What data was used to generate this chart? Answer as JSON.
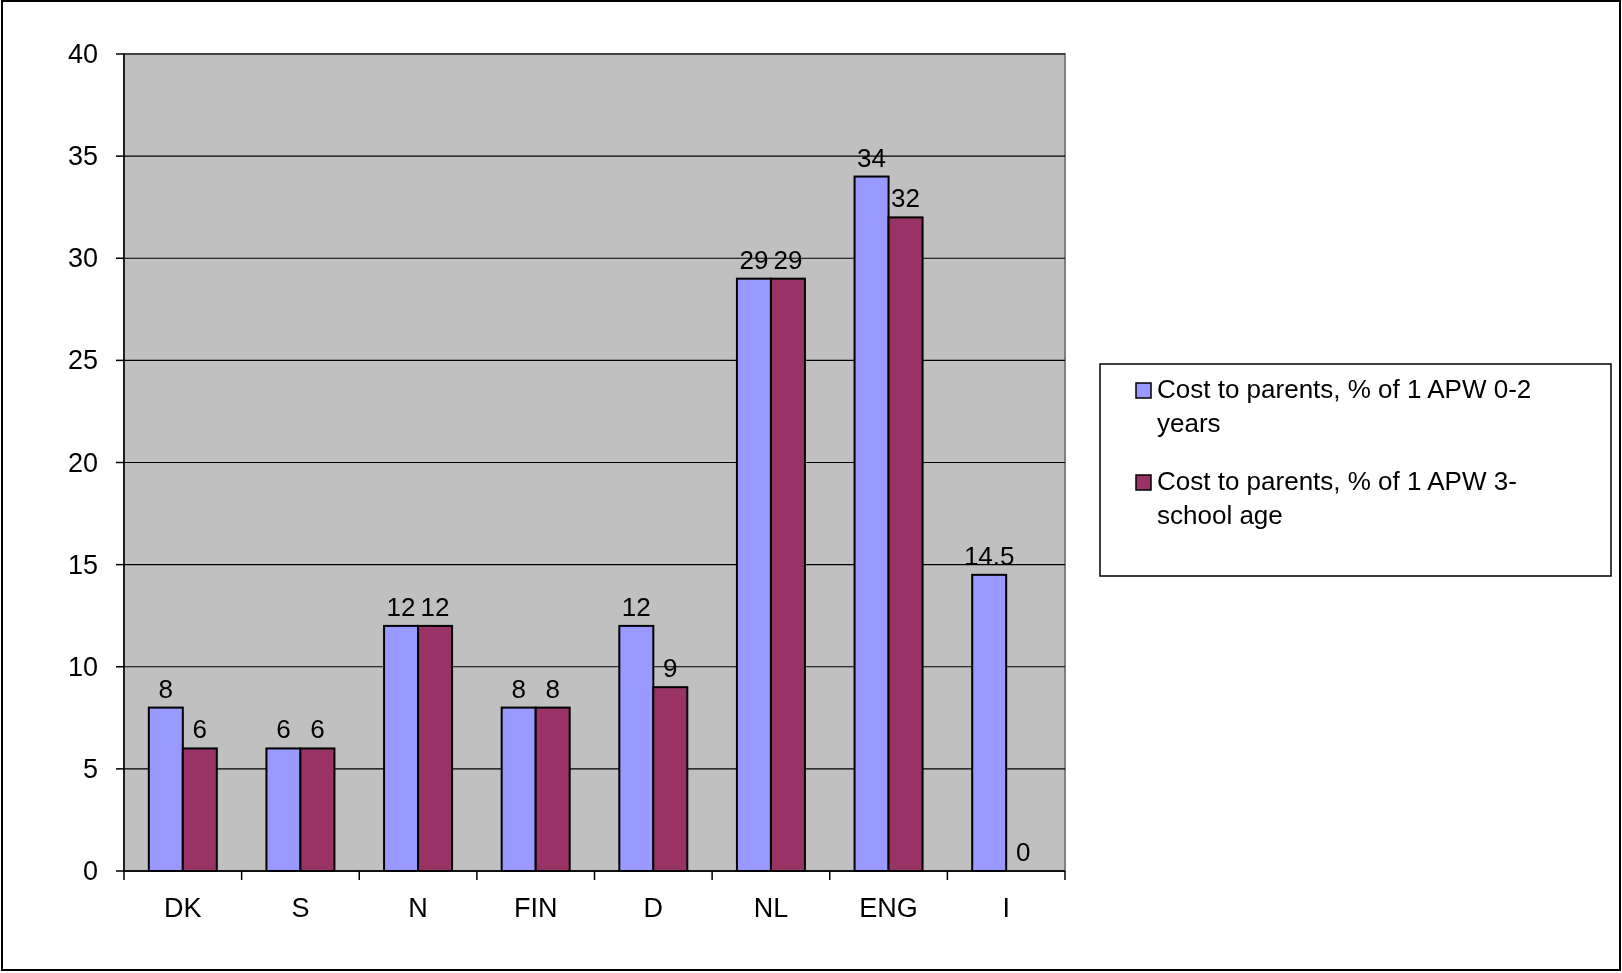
{
  "chart_data": {
    "type": "bar",
    "categories": [
      "DK",
      "S",
      "N",
      "FIN",
      "D",
      "NL",
      "ENG",
      "I"
    ],
    "series": [
      {
        "name": "Cost to parents, % of 1 APW 0-2 years",
        "color": "#9999ff",
        "values": [
          8,
          6,
          12,
          8,
          12,
          29,
          34,
          14.5
        ]
      },
      {
        "name": "Cost to parents, % of 1 APW 3-school age",
        "color": "#993366",
        "values": [
          6,
          6,
          12,
          8,
          9,
          29,
          32,
          0
        ]
      }
    ],
    "ylim": [
      0,
      40
    ],
    "yticks": [
      0,
      5,
      10,
      15,
      20,
      25,
      30,
      35,
      40
    ],
    "grid": "y",
    "legend": "right",
    "data_labels": true
  }
}
